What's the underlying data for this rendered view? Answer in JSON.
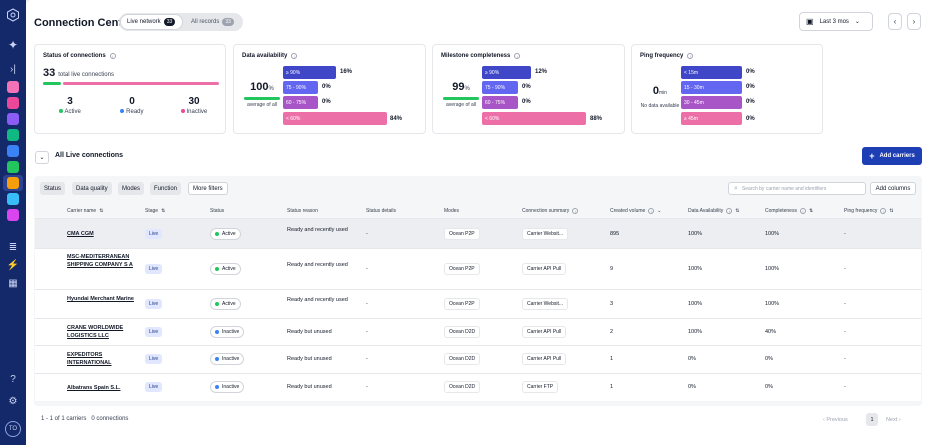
{
  "app": {
    "title": "Connection Center"
  },
  "tabs": [
    {
      "label": "Live network",
      "count": "33"
    },
    {
      "label": "All records",
      "count": "33"
    }
  ],
  "date_range": {
    "label": "Last 3 mos"
  },
  "cards": {
    "status": {
      "title": "Status of connections",
      "total": "33",
      "total_label": "total live connections",
      "stats": [
        {
          "value": "3",
          "label": "Active",
          "color": "#22c55e"
        },
        {
          "value": "0",
          "label": "Ready",
          "color": "#3b82f6"
        },
        {
          "value": "30",
          "label": "Inactive",
          "color": "#ec4899"
        }
      ]
    },
    "availability": {
      "title": "Data availability",
      "value": "100",
      "unit": "%",
      "sub": "average of all",
      "bars": [
        {
          "label": "≥ 90%",
          "pct": "16%",
          "color": "#3f46c8"
        },
        {
          "label": "75 - 90%",
          "pct": "0%",
          "color": "#6366f1"
        },
        {
          "label": "60 - 75%",
          "pct": "0%",
          "color": "#a855c7"
        },
        {
          "label": "< 60%",
          "pct": "84%",
          "color": "#ec6fa8"
        }
      ]
    },
    "milestone": {
      "title": "Milestone completeness",
      "value": "99",
      "unit": "%",
      "sub": "average of all",
      "bars": [
        {
          "label": "≥ 90%",
          "pct": "12%",
          "color": "#3f46c8"
        },
        {
          "label": "75 - 90%",
          "pct": "0%",
          "color": "#6366f1"
        },
        {
          "label": "60 - 75%",
          "pct": "0%",
          "color": "#a855c7"
        },
        {
          "label": "< 60%",
          "pct": "88%",
          "color": "#ec6fa8"
        }
      ]
    },
    "ping": {
      "title": "Ping frequency",
      "value": "0",
      "unit": "min",
      "sub": "No data available",
      "bars": [
        {
          "label": "< 15m",
          "pct": "0%",
          "color": "#3f46c8"
        },
        {
          "label": "15 - 30m",
          "pct": "0%",
          "color": "#6366f1"
        },
        {
          "label": "30 - 45m",
          "pct": "0%",
          "color": "#a855c7"
        },
        {
          "label": "≥ 45m",
          "pct": "0%",
          "color": "#ec6fa8"
        }
      ]
    }
  },
  "live": {
    "title": "All Live connections",
    "add_button": "Add carriers"
  },
  "filters": [
    "Status",
    "Data quality",
    "Modes",
    "Function",
    "More filters"
  ],
  "search": {
    "placeholder": "Search by carrier name and identifiers"
  },
  "add_columns": "Add columns",
  "columns": [
    "Carrier name",
    "Stage",
    "Status",
    "Status reason",
    "Status details",
    "Modes",
    "Connection summary",
    "Created volume",
    "Data Availability",
    "Completeness",
    "Ping frequency"
  ],
  "rows": [
    {
      "carrier": "CMA CGM",
      "stage": "Live",
      "status": "Active",
      "reason": "Ready and recently used",
      "details": "-",
      "mode": "Ocean P2P",
      "summary": "Carrier Websit...",
      "volume": "895",
      "availability": "100%",
      "completeness": "100%",
      "ping": "-"
    },
    {
      "carrier": "MSC-MEDITERRANEAN SHIPPING COMPANY S A",
      "stage": "Live",
      "status": "Active",
      "reason": "Ready and recently used",
      "details": "-",
      "mode": "Ocean P2P",
      "summary": "Carrier API Pull",
      "volume": "9",
      "availability": "100%",
      "completeness": "100%",
      "ping": "-"
    },
    {
      "carrier": "Hyundai Merchant Marine",
      "stage": "Live",
      "status": "Active",
      "reason": "Ready and recently used",
      "details": "-",
      "mode": "Ocean P2P",
      "summary": "Carrier Websit...",
      "volume": "3",
      "availability": "100%",
      "completeness": "100%",
      "ping": "-"
    },
    {
      "carrier": "CRANE WORLDWIDE LOGISTICS LLC",
      "stage": "Live",
      "status": "Inactive",
      "reason": "Ready but unused",
      "details": "-",
      "mode": "Ocean D2D",
      "summary": "Carrier API Pull",
      "volume": "2",
      "availability": "100%",
      "completeness": "40%",
      "ping": "-"
    },
    {
      "carrier": "EXPEDITORS INTERNATIONAL",
      "stage": "Live",
      "status": "Inactive",
      "reason": "Ready but unused",
      "details": "-",
      "mode": "Ocean D2D",
      "summary": "Carrier API Pull",
      "volume": "1",
      "availability": "0%",
      "completeness": "0%",
      "ping": "-"
    },
    {
      "carrier": "Albatrans Spain S.L.",
      "stage": "Live",
      "status": "Inactive",
      "reason": "Ready but unused",
      "details": "-",
      "mode": "Ocean D2D",
      "summary": "Carrier FTP",
      "volume": "1",
      "availability": "0%",
      "completeness": "0%",
      "ping": "-"
    }
  ],
  "footer": {
    "count": "1 - 1 of 1 carriers",
    "connections": "0 connections",
    "prev": "Previous",
    "page": "1",
    "next": "Next"
  },
  "user": {
    "initials": "TO"
  }
}
